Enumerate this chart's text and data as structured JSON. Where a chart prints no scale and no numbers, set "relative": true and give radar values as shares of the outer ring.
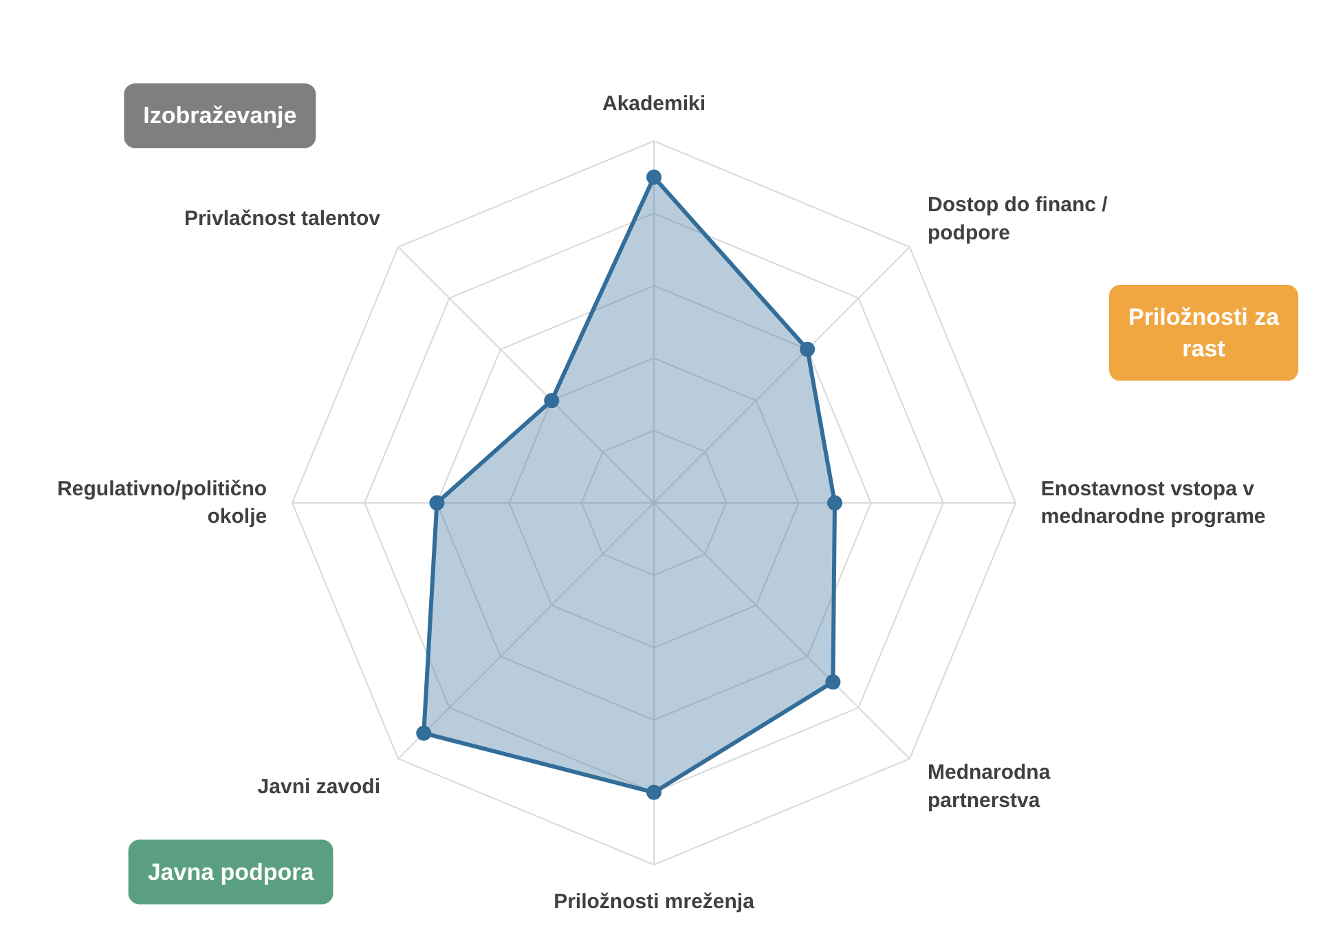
{
  "chart_data": {
    "type": "radar",
    "relative": true,
    "grid": true,
    "marker": "circle",
    "categories": [
      "Akademiki",
      "Dostop do financ / podpore",
      "Enostavnost vstopa v mednarodne programe",
      "Mednarodna partnerstva",
      "Priložnosti mreženja",
      "Javni zavodi",
      "Regulativno/politično okolje",
      "Privlačnost talentov"
    ],
    "series": [
      {
        "color": "#336d99",
        "values": [
          0.9,
          0.6,
          0.5,
          0.7,
          0.8,
          0.9,
          0.6,
          0.4
        ]
      }
    ],
    "annotations": [
      "Izobraževanje",
      "Priložnosti za rast",
      "Javna podpora"
    ]
  }
}
